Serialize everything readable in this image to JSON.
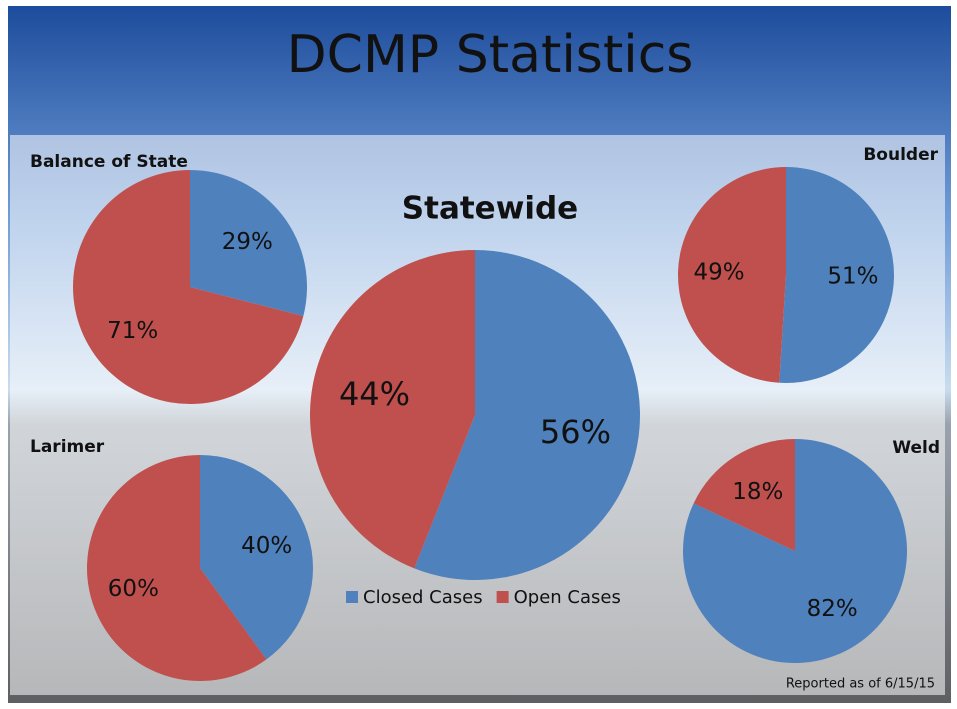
{
  "title": "DCMP Statistics",
  "footnote": "Reported as of 6/15/15",
  "chart_data": [
    {
      "type": "pie",
      "title": "Balance of State",
      "values": [
        29,
        71
      ],
      "value_labels": [
        "29%",
        "71%"
      ],
      "colors": [
        "#4f81bd",
        "#c0504d"
      ]
    },
    {
      "type": "pie",
      "title": "Boulder",
      "values": [
        51,
        49
      ],
      "value_labels": [
        "51%",
        "49%"
      ],
      "colors": [
        "#4f81bd",
        "#c0504d"
      ]
    },
    {
      "type": "pie",
      "title": "Statewide",
      "categories": [
        "Closed Cases",
        "Open Cases"
      ],
      "values": [
        56,
        44
      ],
      "value_labels": [
        "56%",
        "44%"
      ],
      "colors": [
        "#4f81bd",
        "#c0504d"
      ]
    },
    {
      "type": "pie",
      "title": "Larimer",
      "values": [
        40,
        60
      ],
      "value_labels": [
        "40%",
        "60%"
      ],
      "colors": [
        "#4f81bd",
        "#c0504d"
      ]
    },
    {
      "type": "pie",
      "title": "Weld",
      "values": [
        82,
        18
      ],
      "value_labels": [
        "82%",
        "18%"
      ],
      "colors": [
        "#4f81bd",
        "#c0504d"
      ]
    }
  ]
}
